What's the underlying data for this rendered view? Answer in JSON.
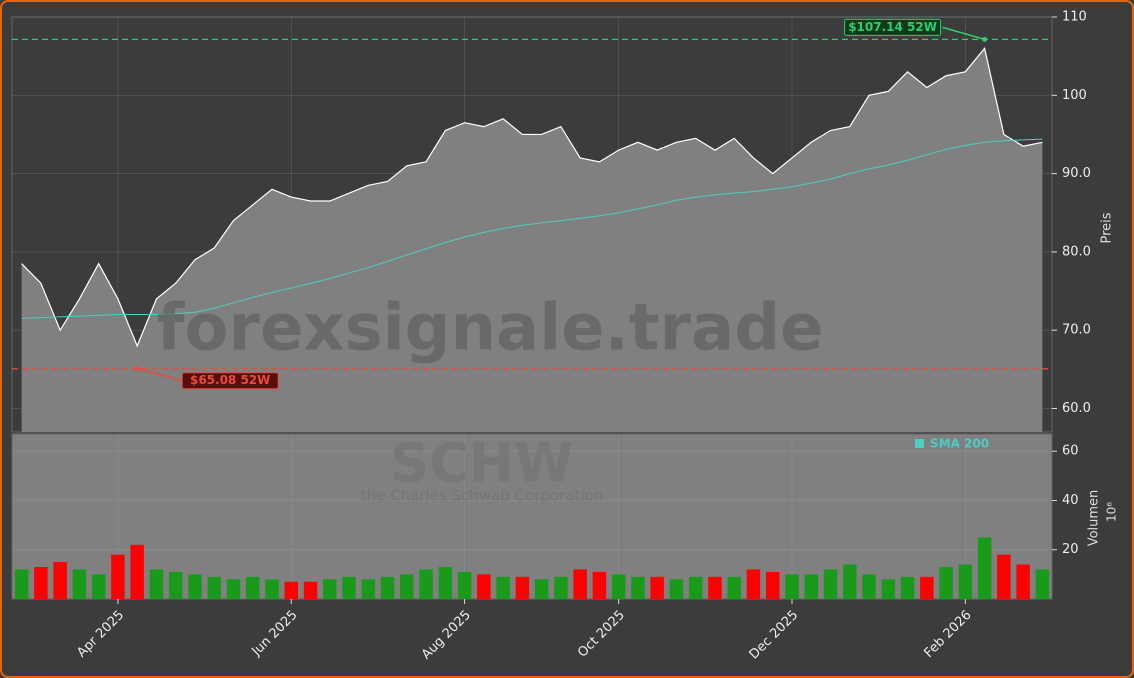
{
  "chart_data": {
    "type": "area",
    "title": "SCHW",
    "subtitle": "the Charles Schwab Corporation",
    "watermark": "forexsignale.trade",
    "y_label": "Preis",
    "color": "#ffffff",
    "area_color": "#808080",
    "categories": [
      null,
      null,
      null,
      null,
      null,
      "Apr 2025",
      null,
      null,
      null,
      null,
      null,
      null,
      null,
      null,
      "Jun 2025",
      null,
      null,
      null,
      null,
      null,
      null,
      null,
      null,
      "Aug 2025",
      null,
      null,
      null,
      null,
      null,
      null,
      null,
      "Oct 2025",
      null,
      null,
      null,
      null,
      null,
      null,
      null,
      null,
      "Dec 2025",
      null,
      null,
      null,
      null,
      null,
      null,
      null,
      null,
      "Feb 2026",
      null,
      null,
      null,
      null
    ],
    "values": [
      78.5,
      76,
      70,
      74,
      78.5,
      74,
      68,
      74,
      76,
      79,
      80.5,
      84,
      86,
      88,
      87,
      86.5,
      86.5,
      87.5,
      88.5,
      89,
      91,
      91.5,
      95.5,
      96.5,
      96,
      97,
      95,
      95,
      96,
      92,
      91.5,
      93,
      94,
      93,
      94,
      94.5,
      93,
      94.5,
      92,
      90,
      92,
      94,
      95.5,
      96,
      100,
      100.5,
      103,
      101,
      102.5,
      103,
      106,
      95,
      93.5,
      94
    ],
    "series": [
      {
        "name": "SMA 200",
        "color": "#4ecdc4",
        "values": [
          71.5,
          71.6,
          71.7,
          71.8,
          71.9,
          72,
          72,
          72,
          72.1,
          72.3,
          72.8,
          73.5,
          74.2,
          74.8,
          75.4,
          76,
          76.6,
          77.3,
          78,
          78.8,
          79.6,
          80.4,
          81.2,
          81.9,
          82.5,
          83,
          83.4,
          83.7,
          84,
          84.3,
          84.6,
          85,
          85.5,
          86,
          86.6,
          87,
          87.3,
          87.5,
          87.7,
          88,
          88.3,
          88.8,
          89.3,
          90,
          90.6,
          91.1,
          91.7,
          92.4,
          93.1,
          93.6,
          94,
          94.2,
          94.3,
          94.4
        ]
      }
    ],
    "annotations": [
      {
        "value": 107.14,
        "label": "$107.14 52W",
        "color": "#2ecc71"
      },
      {
        "value": 65.08,
        "label": "$65.08 52W",
        "color": "#e74c3c"
      }
    ],
    "ylim": [
      57,
      110
    ],
    "yticks": [
      {
        "value": 60,
        "label": "60.0"
      },
      {
        "value": 70,
        "label": "70.0"
      },
      {
        "value": 80,
        "label": "80.0"
      },
      {
        "value": 90,
        "label": "90.0"
      },
      100,
      110
    ],
    "grid": true,
    "volume": {
      "y_label": "Volumen",
      "y_unit": "10⁶",
      "up_color": "#1a9a1a",
      "down_color": "#ff0000",
      "values": [
        12,
        13,
        15,
        12,
        10,
        18,
        22,
        12,
        11,
        10,
        9,
        8,
        9,
        8,
        7,
        7,
        8,
        9,
        8,
        9,
        10,
        12,
        13,
        11,
        10,
        9,
        9,
        8,
        9,
        12,
        11,
        10,
        9,
        9,
        8,
        9,
        9,
        9,
        12,
        11,
        10,
        10,
        12,
        14,
        10,
        8,
        9,
        9,
        13,
        14,
        25,
        18,
        14,
        12
      ],
      "ylim": [
        0,
        67
      ],
      "yticks": [
        20,
        40,
        60
      ]
    }
  }
}
